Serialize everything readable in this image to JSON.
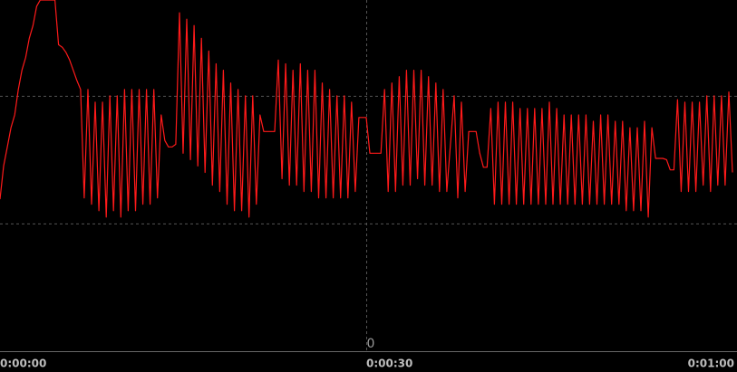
{
  "chart_data": {
    "type": "line",
    "x": [
      0,
      0.3,
      0.6,
      0.9,
      1.2,
      1.5,
      1.8,
      2.1,
      2.4,
      2.7,
      3.0,
      3.3,
      3.6,
      3.9,
      4.2,
      4.5,
      4.8,
      5.1,
      5.4,
      5.7,
      6.0,
      6.3,
      6.6,
      6.9,
      7.2,
      7.5,
      7.8,
      8.1,
      8.4,
      8.7,
      9.0,
      9.3,
      9.6,
      9.9,
      10.2,
      10.5,
      10.8,
      11.1,
      11.4,
      11.7,
      12.0,
      12.3,
      12.6,
      12.9,
      13.2,
      13.5,
      13.8,
      14.1,
      14.4,
      14.7,
      15.0,
      15.3,
      15.6,
      15.9,
      16.2,
      16.5,
      16.8,
      17.1,
      17.4,
      17.7,
      18.0,
      18.3,
      18.6,
      18.9,
      19.2,
      19.5,
      19.8,
      20.1,
      20.4,
      20.7,
      21.0,
      21.3,
      21.6,
      21.9,
      22.2,
      22.5,
      22.8,
      23.1,
      23.4,
      23.7,
      24.0,
      24.3,
      24.6,
      24.9,
      25.2,
      25.5,
      25.8,
      26.1,
      26.4,
      26.7,
      27.0,
      27.3,
      27.6,
      27.9,
      28.2,
      28.5,
      28.8,
      29.1,
      29.4,
      29.7,
      30.0,
      30.3,
      30.6,
      30.9,
      31.2,
      31.5,
      31.8,
      32.1,
      32.4,
      32.7,
      33.0,
      33.3,
      33.6,
      33.9,
      34.2,
      34.5,
      34.8,
      35.1,
      35.4,
      35.7,
      36.0,
      36.3,
      36.6,
      37.2,
      37.5,
      37.8,
      38.1,
      38.4,
      38.7,
      39.0,
      39.3,
      39.6,
      39.9,
      40.2,
      40.5,
      40.8,
      41.1,
      41.4,
      41.7,
      42.0,
      42.3,
      42.6,
      42.9,
      43.2,
      43.5,
      43.8,
      44.1,
      44.4,
      44.7,
      45.0,
      45.3,
      45.6,
      45.9,
      46.2,
      46.5,
      46.8,
      47.1,
      47.4,
      47.7,
      48.0,
      48.3,
      48.6,
      48.9,
      49.2,
      49.5,
      49.8,
      50.1,
      50.4,
      50.7,
      51.0,
      51.3,
      51.6,
      51.9,
      52.2,
      52.5,
      52.8,
      53.1,
      53.4,
      53.7,
      54.0,
      54.3,
      54.6,
      54.9,
      55.2,
      55.5,
      55.8,
      56.1,
      56.4,
      56.7,
      57.0,
      57.3,
      57.6,
      57.9,
      58.2,
      58.5,
      58.8,
      59.1,
      59.4,
      59.7,
      60.0
    ],
    "series": [
      {
        "color": "#ff1a1a",
        "values": [
          1.19,
          1.45,
          1.6,
          1.75,
          1.85,
          2.05,
          2.2,
          2.3,
          2.45,
          2.55,
          2.7,
          2.75,
          2.75,
          2.75,
          2.75,
          2.75,
          2.4,
          2.38,
          2.34,
          2.28,
          2.2,
          2.12,
          2.05,
          1.2,
          2.05,
          1.15,
          1.95,
          1.1,
          1.95,
          1.05,
          2.0,
          1.1,
          2.0,
          1.05,
          2.05,
          1.1,
          2.05,
          1.1,
          2.05,
          1.15,
          2.05,
          1.15,
          2.05,
          1.2,
          1.85,
          1.65,
          1.6,
          1.6,
          1.62,
          2.65,
          1.55,
          2.6,
          1.5,
          2.55,
          1.45,
          2.45,
          1.4,
          2.35,
          1.3,
          2.25,
          1.25,
          2.2,
          1.15,
          2.1,
          1.1,
          2.05,
          1.1,
          2.0,
          1.05,
          2.0,
          1.15,
          1.85,
          1.72,
          1.72,
          1.72,
          1.72,
          2.28,
          1.35,
          2.25,
          1.3,
          2.2,
          1.3,
          2.25,
          1.25,
          2.2,
          1.25,
          2.2,
          1.2,
          2.1,
          1.2,
          2.05,
          1.2,
          2.0,
          1.2,
          2.0,
          1.2,
          1.95,
          1.25,
          1.83,
          1.83,
          1.83,
          1.55,
          1.55,
          1.55,
          1.55,
          2.05,
          1.25,
          2.1,
          1.25,
          2.15,
          1.3,
          2.2,
          1.3,
          2.2,
          1.35,
          2.2,
          1.3,
          2.15,
          1.3,
          2.1,
          1.25,
          2.05,
          1.25,
          2.0,
          1.2,
          1.95,
          1.25,
          1.72,
          1.72,
          1.72,
          1.55,
          1.44,
          1.44,
          1.9,
          1.15,
          1.95,
          1.15,
          1.95,
          1.15,
          1.95,
          1.15,
          1.9,
          1.15,
          1.9,
          1.15,
          1.9,
          1.15,
          1.9,
          1.15,
          1.95,
          1.15,
          1.9,
          1.15,
          1.85,
          1.15,
          1.85,
          1.15,
          1.85,
          1.15,
          1.85,
          1.15,
          1.8,
          1.15,
          1.85,
          1.15,
          1.85,
          1.15,
          1.8,
          1.15,
          1.8,
          1.1,
          1.75,
          1.1,
          1.75,
          1.1,
          1.8,
          1.05,
          1.75,
          1.51,
          1.51,
          1.51,
          1.5,
          1.42,
          1.42,
          1.97,
          1.25,
          1.95,
          1.25,
          1.95,
          1.25,
          1.95,
          1.3,
          2.0,
          1.25,
          2.0,
          1.3,
          2.0,
          1.3,
          2.03,
          1.4
        ]
      }
    ],
    "xlim": [
      0,
      60
    ],
    "xticks": [
      {
        "value": 0,
        "label": "0:00:00"
      },
      {
        "value": 30,
        "label": "0:00:30"
      },
      {
        "value": 60,
        "label": "0:01:00"
      }
    ],
    "ylim": [
      0,
      2.75
    ],
    "yticks": [
      0
    ],
    "ygrid": [
      1,
      2
    ],
    "xgrid": [
      30
    ]
  }
}
